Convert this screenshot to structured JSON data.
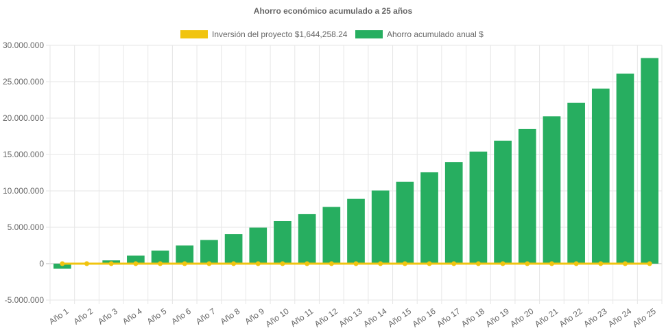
{
  "chart_data": {
    "type": "bar",
    "title": "Ahorro económico acumulado a 25 años",
    "categories": [
      "Año 1",
      "Año 2",
      "Año 3",
      "Año 4",
      "Año 5",
      "Año 6",
      "Año 7",
      "Año 8",
      "Año 9",
      "Año 10",
      "Año 11",
      "Año 12",
      "Año 13",
      "Año 14",
      "Año 15",
      "Año 16",
      "Año 17",
      "Año 18",
      "Año 19",
      "Año 20",
      "Año 21",
      "Año 22",
      "Año 23",
      "Año 24",
      "Año 25"
    ],
    "series": [
      {
        "name": "Inversión del proyecto $1,644,258.24",
        "type": "line",
        "color": "#f1c40f",
        "values": [
          0,
          0,
          0,
          0,
          0,
          0,
          0,
          0,
          0,
          0,
          0,
          0,
          0,
          0,
          0,
          0,
          0,
          0,
          0,
          0,
          0,
          0,
          0,
          0,
          0
        ]
      },
      {
        "name": "Ahorro acumulado anual $",
        "type": "bar",
        "color": "#27ae60",
        "values": [
          -700000,
          0,
          450000,
          1100000,
          1800000,
          2500000,
          3250000,
          4050000,
          4950000,
          5850000,
          6800000,
          7800000,
          8900000,
          10050000,
          11250000,
          12550000,
          13950000,
          15400000,
          16900000,
          18500000,
          20250000,
          22100000,
          24050000,
          26100000,
          28250000
        ]
      }
    ],
    "ylim": [
      -5000000,
      30000000
    ],
    "yticks": [
      "30.000.000",
      "25.000.000",
      "20.000.000",
      "15.000.000",
      "10.000.000",
      "5.000.000",
      "0",
      "-5.000.000"
    ],
    "ytick_values": [
      30000000,
      25000000,
      20000000,
      15000000,
      10000000,
      5000000,
      0,
      -5000000
    ],
    "grid": true,
    "legend_position": "top"
  }
}
